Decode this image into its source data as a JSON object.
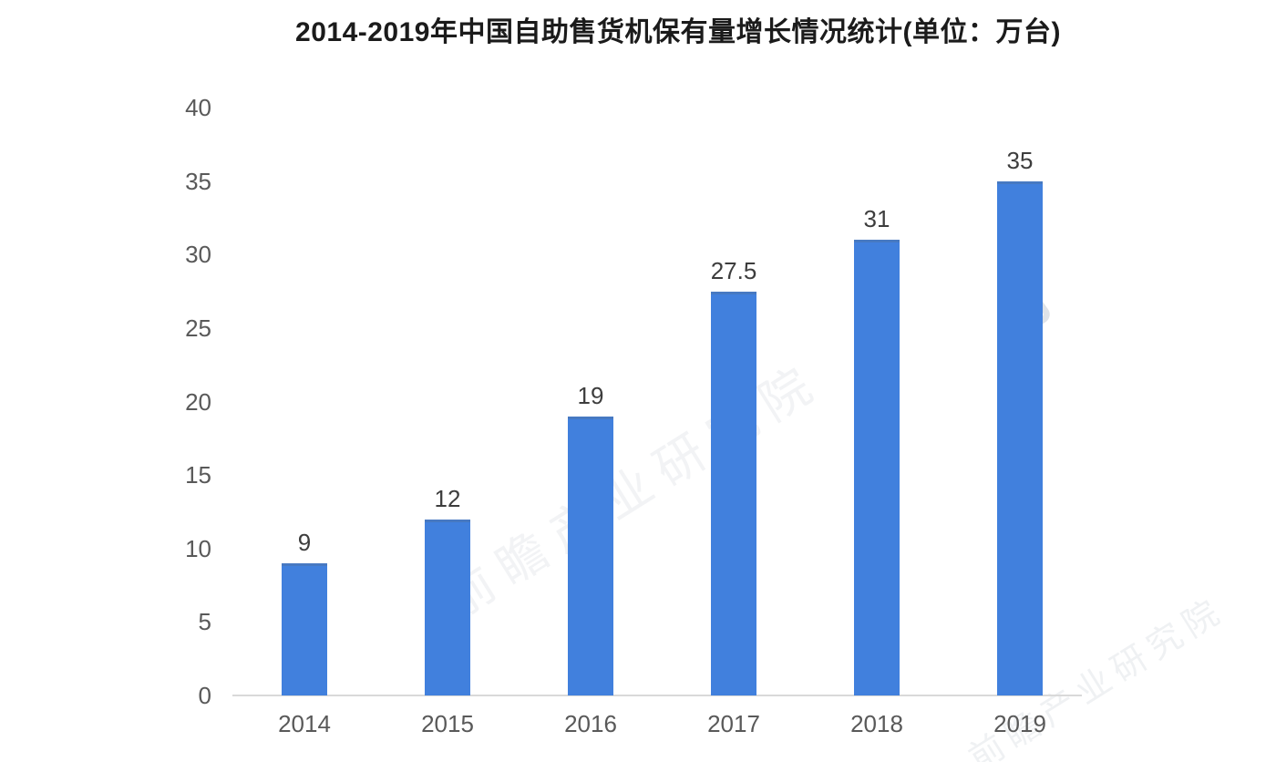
{
  "chart_data": {
    "type": "bar",
    "title": "2014-2019年中国自助售货机保有量增长情况统计(单位：万台)",
    "categories": [
      "2014",
      "2015",
      "2016",
      "2017",
      "2018",
      "2019"
    ],
    "values": [
      9,
      12,
      19,
      27.5,
      31,
      35
    ],
    "value_labels": [
      "9",
      "12",
      "19",
      "27.5",
      "31",
      "35"
    ],
    "unit_label": "万台",
    "ylim": [
      0,
      40
    ],
    "yticks": [
      0,
      5,
      10,
      15,
      20,
      25,
      30,
      35,
      40
    ],
    "grid": false,
    "legend_position": "none",
    "bar_color": "#4180dd",
    "axis_line_color": "#d9d9d9",
    "title_color": "#1b1b1b",
    "tick_label_color": "#595959",
    "value_label_color": "#3d3d3d"
  },
  "watermark": {
    "text": "前瞻产业研究院"
  }
}
